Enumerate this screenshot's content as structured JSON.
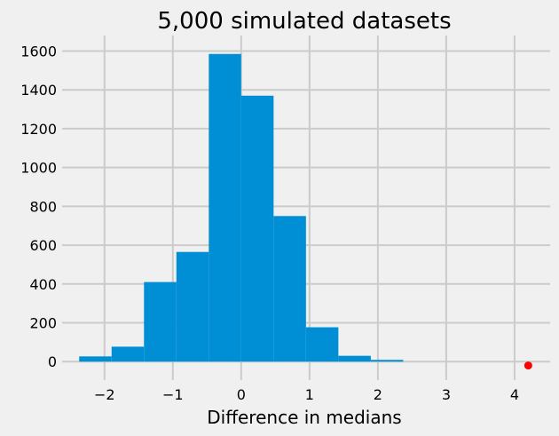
{
  "chart_data": {
    "type": "bar",
    "title": "5,000 simulated datasets",
    "xlabel": "Difference in medians",
    "ylabel": "",
    "bin_edges": [
      -2.37,
      -1.896,
      -1.422,
      -0.948,
      -0.474,
      0.0,
      0.474,
      0.948,
      1.422,
      1.896,
      2.37
    ],
    "values": [
      27,
      77,
      410,
      565,
      1585,
      1370,
      750,
      177,
      30,
      9
    ],
    "marker": {
      "x": 4.2,
      "y": -20,
      "color": "#ff0000"
    },
    "xlim": [
      -2.62,
      4.52
    ],
    "ylim": [
      -95,
      1680
    ],
    "xticks": [
      -2,
      -1,
      0,
      1,
      2,
      3,
      4
    ],
    "xtick_labels": [
      "−2",
      "−1",
      "0",
      "1",
      "2",
      "3",
      "4"
    ],
    "yticks": [
      0,
      200,
      400,
      600,
      800,
      1000,
      1200,
      1400,
      1600
    ],
    "ytick_labels": [
      "0",
      "200",
      "400",
      "600",
      "800",
      "1000",
      "1200",
      "1400",
      "1600"
    ],
    "grid": true,
    "bar_color": "#008fd5",
    "grid_color": "#cbcbcb",
    "background": "#f0f0f0"
  }
}
